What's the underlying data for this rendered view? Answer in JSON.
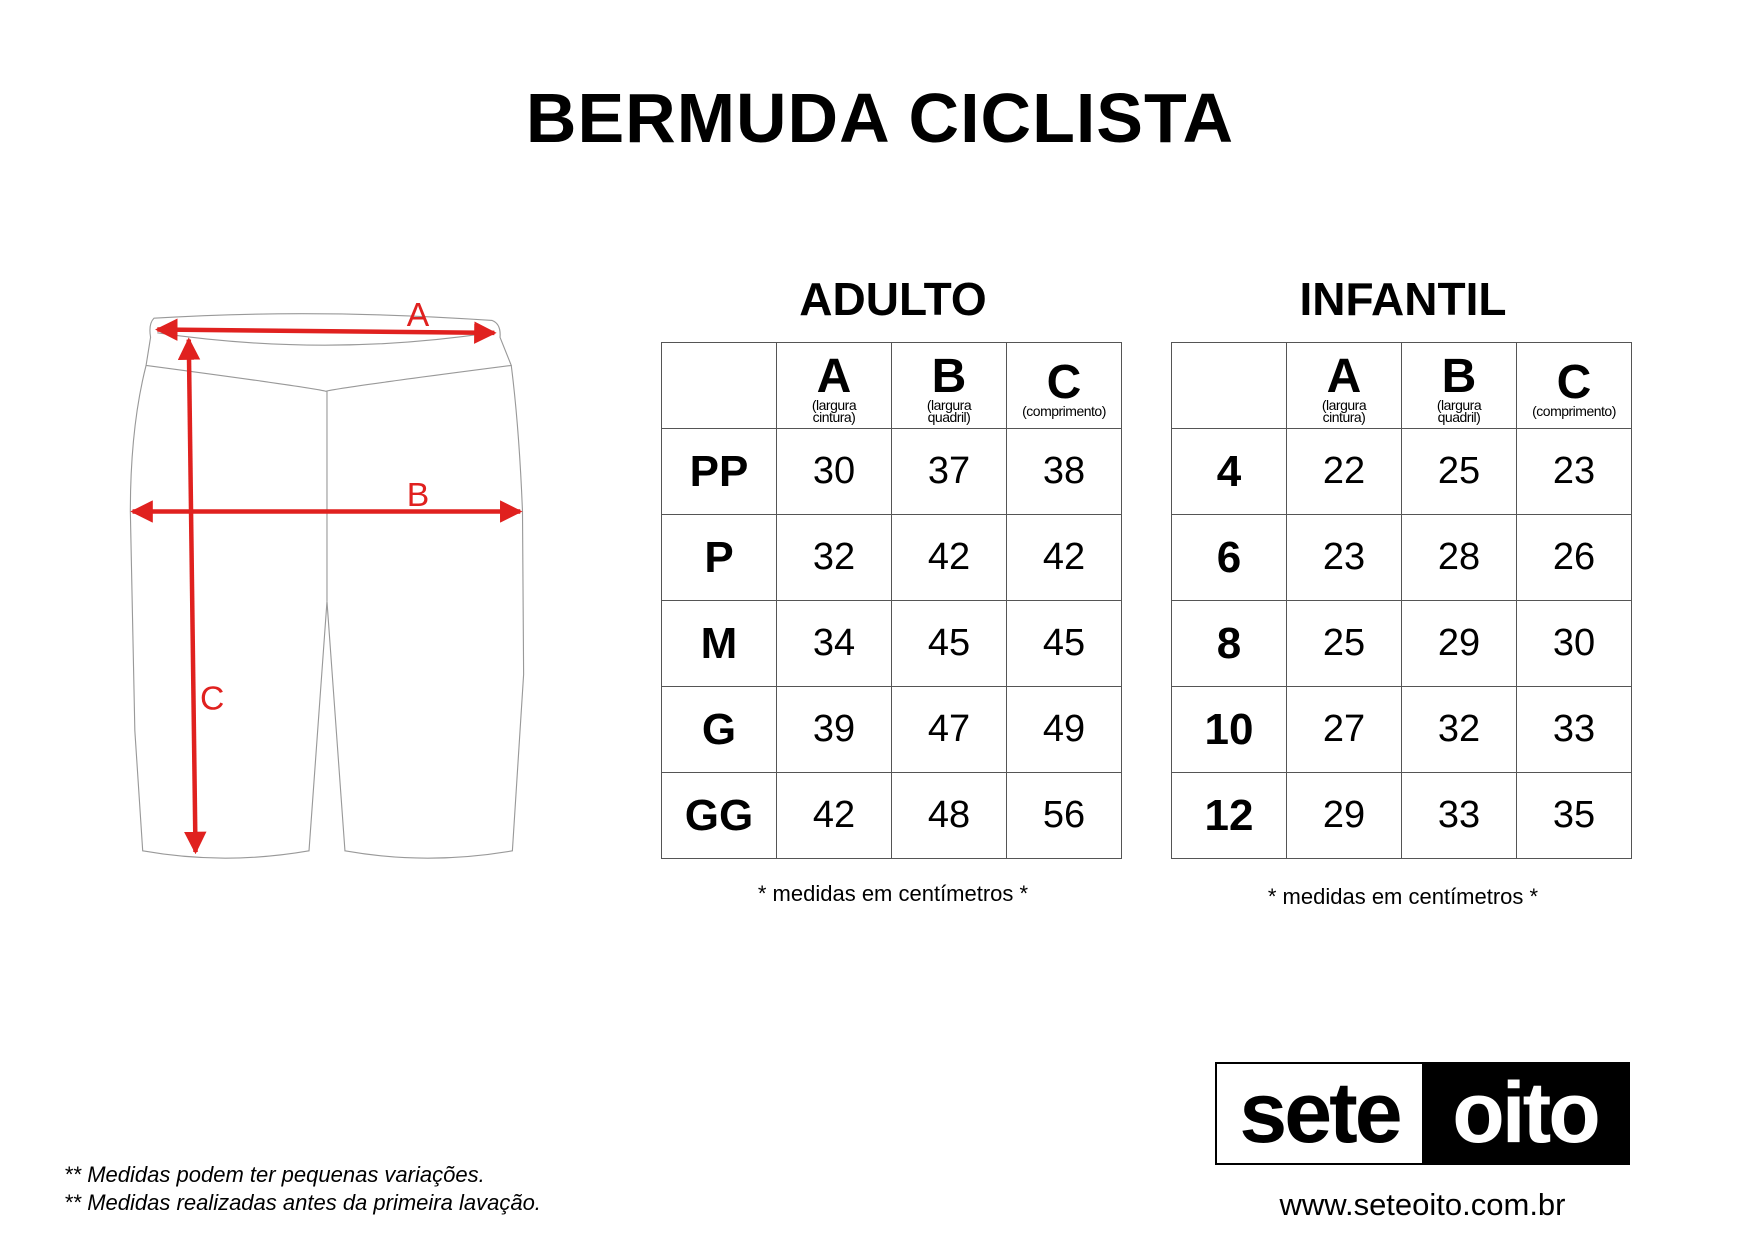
{
  "title": "BERMUDA CICLISTA",
  "diagram": {
    "labels": [
      "A",
      "B",
      "C"
    ],
    "arrow_color": "#e0211f"
  },
  "tables": [
    {
      "title": "ADULTO",
      "columns": [
        {
          "letter": "A",
          "desc": [
            "(largura",
            "cintura)"
          ]
        },
        {
          "letter": "B",
          "desc": [
            "(largura",
            "quadril)"
          ]
        },
        {
          "letter": "C",
          "desc": [
            "(comprimento)"
          ]
        }
      ],
      "rows": [
        {
          "size": "PP",
          "values": [
            "30",
            "37",
            "38"
          ]
        },
        {
          "size": "P",
          "values": [
            "32",
            "42",
            "42"
          ]
        },
        {
          "size": "M",
          "values": [
            "34",
            "45",
            "45"
          ]
        },
        {
          "size": "G",
          "values": [
            "39",
            "47",
            "49"
          ]
        },
        {
          "size": "GG",
          "values": [
            "42",
            "48",
            "56"
          ]
        }
      ],
      "note": "* medidas em centímetros *"
    },
    {
      "title": "INFANTIL",
      "columns": [
        {
          "letter": "A",
          "desc": [
            "(largura",
            "cintura)"
          ]
        },
        {
          "letter": "B",
          "desc": [
            "(largura",
            "quadril)"
          ]
        },
        {
          "letter": "C",
          "desc": [
            "(comprimento)"
          ]
        }
      ],
      "rows": [
        {
          "size": "4",
          "values": [
            "22",
            "25",
            "23"
          ]
        },
        {
          "size": "6",
          "values": [
            "23",
            "28",
            "26"
          ]
        },
        {
          "size": "8",
          "values": [
            "25",
            "29",
            "30"
          ]
        },
        {
          "size": "10",
          "values": [
            "27",
            "32",
            "33"
          ]
        },
        {
          "size": "12",
          "values": [
            "29",
            "33",
            "35"
          ]
        }
      ],
      "note": "* medidas em centímetros *"
    }
  ],
  "footnotes": [
    "** Medidas podem ter pequenas variações.",
    "** Medidas realizadas antes da primeira lavação."
  ],
  "logo": {
    "part1": "sete",
    "part2": "oito"
  },
  "website": "www.seteoito.com.br"
}
